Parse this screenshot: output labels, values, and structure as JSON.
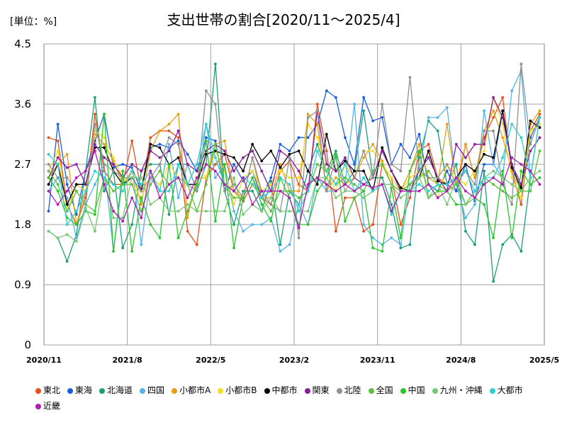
{
  "chart_data": {
    "type": "line",
    "title": "支出世帯の割合[2020/11～2025/4]",
    "unit_label": "[単位：%]",
    "ylim": [
      0,
      4.5
    ],
    "yticks": [
      "0",
      "0.9",
      "1.8",
      "2.7",
      "3.6",
      "4.5"
    ],
    "xticks": [
      "2020/11",
      "2021/8",
      "2022/5",
      "2023/2",
      "2023/11",
      "2024/8",
      "2025/5"
    ],
    "grid": true,
    "legend_position": "bottom",
    "x": [
      "2020/11",
      "2020/12",
      "2021/1",
      "2021/2",
      "2021/3",
      "2021/4",
      "2021/5",
      "2021/6",
      "2021/7",
      "2021/8",
      "2021/9",
      "2021/10",
      "2021/11",
      "2021/12",
      "2022/1",
      "2022/2",
      "2022/3",
      "2022/4",
      "2022/5",
      "2022/6",
      "2022/7",
      "2022/8",
      "2022/9",
      "2022/10",
      "2022/11",
      "2022/12",
      "2023/1",
      "2023/2",
      "2023/3",
      "2023/4",
      "2023/5",
      "2023/6",
      "2023/7",
      "2023/8",
      "2023/9",
      "2023/10",
      "2023/11",
      "2023/12",
      "2024/1",
      "2024/2",
      "2024/3",
      "2024/4",
      "2024/5",
      "2024/6",
      "2024/7",
      "2024/8",
      "2024/9",
      "2024/10",
      "2024/11",
      "2024/12",
      "2025/1",
      "2025/2",
      "2025/3",
      "2025/4"
    ],
    "series": [
      {
        "name": "東北",
        "color": "#e8501e",
        "values": [
          3.1,
          3.05,
          2.1,
          1.8,
          2.2,
          3.45,
          2.6,
          2.4,
          2.4,
          3.05,
          2.3,
          3.1,
          3.2,
          3.2,
          3.1,
          1.7,
          1.5,
          2.5,
          2.7,
          2.85,
          2.3,
          2.15,
          2.4,
          2.2,
          2.1,
          2.6,
          2.75,
          2.4,
          2.3,
          3.6,
          2.9,
          1.7,
          2.2,
          2.2,
          1.7,
          1.8,
          2.7,
          2.5,
          1.8,
          2.2,
          2.9,
          3.0,
          2.5,
          2.4,
          2.3,
          3.0,
          2.5,
          3.1,
          3.4,
          3.7,
          2.6,
          2.1,
          3.2,
          3.45
        ]
      },
      {
        "name": "東海",
        "color": "#1a5ee0",
        "values": [
          2.0,
          3.3,
          2.4,
          1.95,
          2.6,
          3.05,
          3.45,
          2.65,
          2.7,
          2.65,
          2.3,
          2.95,
          3.0,
          2.95,
          3.05,
          2.85,
          2.6,
          3.1,
          3.05,
          2.3,
          2.7,
          2.45,
          2.6,
          2.2,
          2.5,
          3.0,
          2.9,
          3.1,
          3.1,
          3.3,
          3.8,
          3.7,
          3.1,
          2.7,
          3.7,
          3.35,
          3.4,
          2.7,
          3.0,
          2.8,
          3.15,
          2.4,
          2.3,
          2.6,
          2.3,
          2.7,
          2.15,
          2.7,
          2.7,
          3.5,
          2.7,
          2.3,
          3.1,
          3.4
        ]
      },
      {
        "name": "北海道",
        "color": "#1e9e78",
        "values": [
          1.7,
          1.6,
          1.25,
          1.65,
          2.6,
          3.7,
          2.3,
          2.6,
          1.45,
          1.8,
          2.6,
          2.7,
          2.7,
          1.95,
          2.7,
          2.7,
          2.3,
          2.7,
          4.2,
          2.3,
          1.8,
          2.3,
          2.3,
          2.0,
          2.45,
          1.5,
          2.3,
          2.1,
          2.6,
          3.0,
          2.6,
          2.9,
          2.4,
          2.6,
          3.5,
          2.5,
          2.5,
          2.1,
          1.45,
          1.5,
          2.8,
          3.35,
          3.2,
          2.4,
          2.7,
          1.7,
          1.5,
          2.6,
          0.95,
          1.5,
          1.65,
          1.4,
          2.5,
          3.4
        ]
      },
      {
        "name": "四国",
        "color": "#55b4e8",
        "values": [
          2.3,
          2.5,
          2.2,
          1.6,
          2.1,
          2.4,
          2.7,
          1.4,
          2.5,
          2.7,
          1.5,
          2.5,
          2.3,
          3.0,
          2.2,
          2.7,
          2.3,
          3.3,
          2.5,
          2.7,
          2.0,
          1.7,
          1.8,
          1.8,
          1.9,
          1.4,
          1.5,
          2.1,
          1.8,
          2.5,
          2.3,
          2.3,
          2.4,
          3.6,
          1.8,
          1.6,
          1.5,
          1.6,
          1.5,
          2.4,
          2.6,
          3.4,
          3.4,
          3.55,
          2.4,
          1.9,
          2.1,
          3.5,
          2.7,
          2.5,
          3.8,
          4.1,
          2.5,
          3.4
        ]
      },
      {
        "name": "小都市A",
        "color": "#e8a010",
        "values": [
          2.5,
          2.7,
          2.85,
          1.8,
          2.3,
          3.15,
          3.0,
          2.75,
          2.4,
          2.6,
          2.1,
          2.9,
          3.2,
          3.3,
          3.45,
          1.9,
          2.5,
          2.5,
          3.0,
          3.05,
          2.3,
          2.2,
          2.8,
          2.2,
          2.2,
          2.7,
          2.3,
          2.3,
          3.45,
          3.3,
          2.3,
          2.5,
          2.4,
          2.5,
          2.8,
          3.0,
          2.75,
          2.4,
          2.3,
          2.6,
          3.0,
          2.5,
          2.4,
          3.3,
          2.4,
          3.0,
          2.5,
          3.2,
          3.5,
          3.1,
          2.6,
          2.3,
          3.3,
          3.5
        ]
      },
      {
        "name": "小都市B",
        "color": "#f0e020",
        "values": [
          2.6,
          2.9,
          2.0,
          2.4,
          2.3,
          3.2,
          3.1,
          2.8,
          2.5,
          2.4,
          2.2,
          2.5,
          2.4,
          2.7,
          2.5,
          2.4,
          2.7,
          2.5,
          2.9,
          2.6,
          2.1,
          2.5,
          2.6,
          2.3,
          2.4,
          2.6,
          2.5,
          2.5,
          3.3,
          3.1,
          2.6,
          2.3,
          2.7,
          2.5,
          2.9,
          2.9,
          2.7,
          2.5,
          2.3,
          2.5,
          2.6,
          2.4,
          2.2,
          2.7,
          2.5,
          2.4,
          2.6,
          2.9,
          3.7,
          3.3,
          2.5,
          2.2,
          3.2,
          3.3
        ]
      },
      {
        "name": "中都市",
        "color": "#000000",
        "values": [
          2.4,
          2.7,
          2.1,
          2.4,
          2.4,
          2.95,
          2.95,
          2.6,
          2.4,
          2.5,
          2.3,
          3.0,
          2.95,
          2.7,
          2.8,
          2.4,
          2.4,
          2.85,
          2.9,
          2.85,
          2.8,
          2.6,
          3.0,
          2.75,
          2.9,
          2.65,
          2.85,
          2.9,
          2.6,
          2.4,
          3.15,
          2.6,
          2.75,
          2.6,
          2.6,
          2.3,
          2.95,
          2.6,
          2.35,
          2.3,
          2.5,
          2.9,
          2.45,
          2.4,
          2.5,
          2.7,
          2.6,
          2.85,
          2.8,
          3.5,
          2.65,
          2.35,
          3.35,
          3.25
        ]
      },
      {
        "name": "関東",
        "color": "#8a1e9e",
        "values": [
          2.5,
          2.8,
          2.65,
          2.7,
          2.4,
          3.0,
          2.8,
          2.7,
          2.5,
          2.7,
          2.6,
          2.9,
          2.8,
          2.9,
          3.2,
          2.7,
          2.6,
          2.9,
          3.0,
          2.9,
          2.6,
          2.8,
          2.9,
          2.6,
          2.3,
          2.9,
          2.8,
          2.6,
          2.3,
          3.5,
          2.7,
          2.6,
          2.8,
          2.5,
          2.4,
          2.5,
          2.9,
          2.6,
          2.3,
          2.3,
          2.6,
          2.8,
          2.5,
          2.3,
          3.0,
          2.8,
          3.0,
          3.0,
          3.7,
          3.4,
          2.7,
          2.4,
          2.9,
          3.1
        ]
      },
      {
        "name": "北陸",
        "color": "#909090",
        "values": [
          2.7,
          2.5,
          2.5,
          2.3,
          2.1,
          3.3,
          2.7,
          2.6,
          2.5,
          2.5,
          2.3,
          2.5,
          2.7,
          3.1,
          3.0,
          2.4,
          2.3,
          3.8,
          3.6,
          2.3,
          2.4,
          2.2,
          2.8,
          2.3,
          2.1,
          2.0,
          2.8,
          1.6,
          3.4,
          3.5,
          2.3,
          2.8,
          2.3,
          2.5,
          2.9,
          2.5,
          3.6,
          2.7,
          2.6,
          4.0,
          2.6,
          2.5,
          2.5,
          2.7,
          2.4,
          2.6,
          2.4,
          3.2,
          3.2,
          2.4,
          2.1,
          4.2,
          3.0,
          3.4
        ]
      },
      {
        "name": "全国",
        "color": "#5cc040",
        "values": [
          2.6,
          2.4,
          2.0,
          2.3,
          2.1,
          2.0,
          2.5,
          2.3,
          2.4,
          2.4,
          2.0,
          2.4,
          2.6,
          2.4,
          2.5,
          2.4,
          2.0,
          2.4,
          3.0,
          2.4,
          2.2,
          2.2,
          2.5,
          2.2,
          2.0,
          2.3,
          2.3,
          2.2,
          2.3,
          2.7,
          2.6,
          2.4,
          2.5,
          2.4,
          2.3,
          2.6,
          2.7,
          2.4,
          2.3,
          2.4,
          2.5,
          2.6,
          2.4,
          2.3,
          2.4,
          2.1,
          2.3,
          2.5,
          2.4,
          2.3,
          2.2,
          2.3,
          2.3,
          2.9
        ]
      },
      {
        "name": "中国",
        "color": "#28c828",
        "values": [
          2.5,
          2.3,
          1.9,
          1.8,
          2.0,
          1.95,
          3.45,
          1.4,
          2.6,
          1.4,
          2.2,
          1.8,
          1.6,
          2.7,
          1.6,
          2.0,
          2.4,
          3.05,
          1.85,
          2.7,
          1.45,
          2.2,
          2.5,
          2.1,
          1.85,
          2.5,
          2.2,
          1.8,
          1.8,
          2.3,
          2.5,
          2.85,
          1.85,
          2.2,
          2.3,
          1.45,
          1.4,
          2.35,
          1.6,
          2.6,
          2.9,
          2.2,
          2.3,
          2.3,
          2.1,
          2.1,
          2.2,
          2.1,
          1.6,
          2.6,
          1.6,
          2.6,
          2.4,
          2.5
        ]
      },
      {
        "name": "九州・沖縄",
        "color": "#78c878",
        "values": [
          1.7,
          1.6,
          1.65,
          1.55,
          2.05,
          1.7,
          2.5,
          1.9,
          1.9,
          2.5,
          2.5,
          2.1,
          2.2,
          2.0,
          2.0,
          2.1,
          2.0,
          2.0,
          2.0,
          2.0,
          2.5,
          1.95,
          2.1,
          2.0,
          2.2,
          2.0,
          2.0,
          2.0,
          2.0,
          2.5,
          2.5,
          2.2,
          2.3,
          2.3,
          2.2,
          2.3,
          2.4,
          2.4,
          2.2,
          2.3,
          2.5,
          2.2,
          2.4,
          2.1,
          2.5,
          2.1,
          2.2,
          2.5,
          2.6,
          2.5,
          2.4,
          2.3,
          2.5,
          2.6
        ]
      },
      {
        "name": "大都市",
        "color": "#30d0d0",
        "values": [
          2.85,
          2.7,
          1.8,
          2.0,
          2.3,
          2.6,
          2.5,
          2.4,
          2.3,
          2.6,
          2.4,
          2.6,
          2.3,
          2.3,
          2.7,
          2.4,
          2.7,
          3.3,
          2.8,
          2.4,
          2.3,
          2.5,
          2.4,
          2.2,
          2.3,
          2.5,
          2.4,
          2.0,
          2.3,
          2.9,
          2.6,
          2.4,
          2.7,
          2.3,
          2.5,
          2.3,
          2.4,
          1.95,
          2.3,
          2.3,
          2.4,
          2.3,
          2.4,
          2.4,
          2.5,
          2.6,
          2.3,
          2.5,
          2.5,
          2.8,
          3.3,
          3.1,
          2.5,
          3.4
        ]
      },
      {
        "name": "近畿",
        "color": "#b01eb0",
        "values": [
          2.3,
          2.1,
          2.3,
          2.5,
          2.6,
          2.9,
          2.4,
          2.0,
          1.85,
          2.2,
          1.9,
          2.6,
          2.2,
          2.4,
          2.5,
          2.2,
          2.5,
          2.7,
          2.6,
          2.4,
          2.3,
          2.5,
          2.1,
          2.3,
          2.3,
          2.3,
          2.2,
          1.75,
          2.4,
          2.5,
          2.4,
          2.3,
          2.4,
          2.3,
          2.4,
          2.35,
          2.4,
          2.0,
          2.3,
          2.3,
          2.3,
          2.4,
          2.2,
          2.3,
          2.5,
          2.3,
          2.2,
          2.4,
          2.5,
          2.4,
          2.8,
          2.7,
          2.6,
          2.4
        ]
      }
    ]
  }
}
